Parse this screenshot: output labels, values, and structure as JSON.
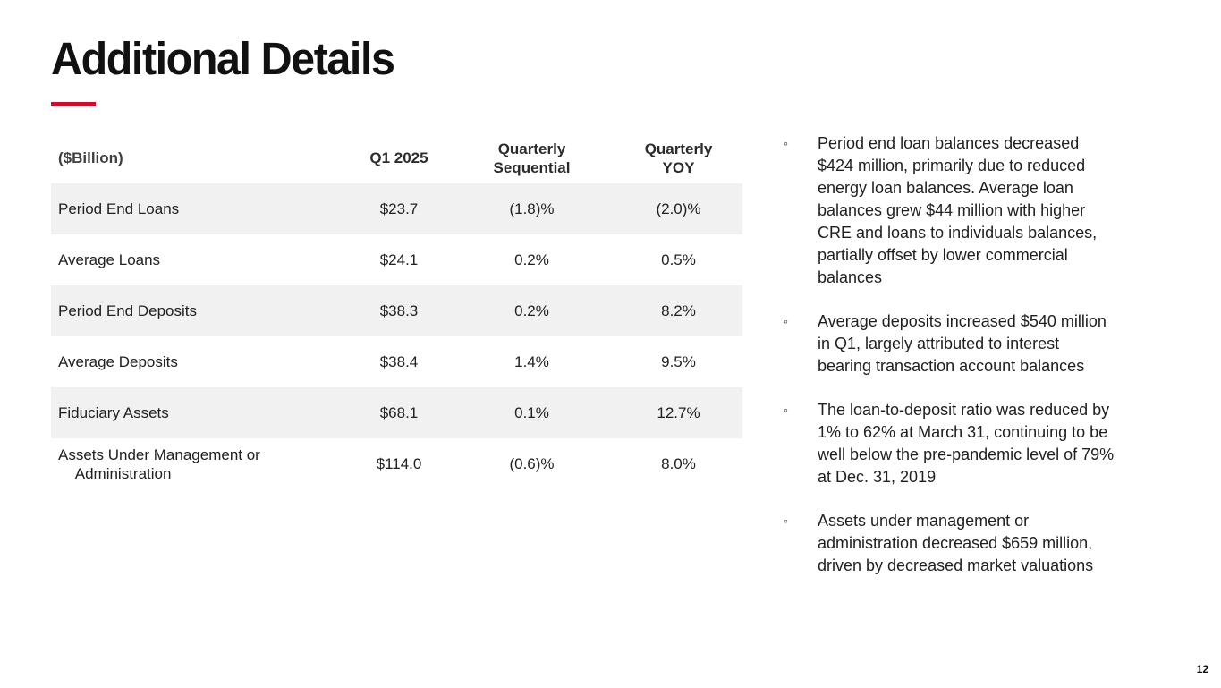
{
  "slide": {
    "title": "Additional Details",
    "page_number": "12",
    "bullet_marker": "◦",
    "accent_color": "#c8102e",
    "stripe_color": "#f1f1f1"
  },
  "table": {
    "unit_label": "($Billion)",
    "columns": {
      "q1": "Q1 2025",
      "seq": "Quarterly\nSequential",
      "yoy": "Quarterly\nYOY"
    },
    "rows": [
      {
        "label": "Period End Loans",
        "q1": "$23.7",
        "seq": "(1.8)%",
        "yoy": "(2.0)%"
      },
      {
        "label": "Average Loans",
        "q1": "$24.1",
        "seq": "0.2%",
        "yoy": "0.5%"
      },
      {
        "label": "Period End Deposits",
        "q1": "$38.3",
        "seq": "0.2%",
        "yoy": "8.2%"
      },
      {
        "label": "Average Deposits",
        "q1": "$38.4",
        "seq": "1.4%",
        "yoy": "9.5%"
      },
      {
        "label": "Fiduciary Assets",
        "q1": "$68.1",
        "seq": "0.1%",
        "yoy": "12.7%"
      },
      {
        "label": "Assets Under Management or\n Administration",
        "q1": "$114.0",
        "seq": "(0.6)%",
        "yoy": "8.0%"
      }
    ]
  },
  "bullets": [
    "Period end loan balances decreased\n$424 million, primarily due to reduced\nenergy loan balances. Average loan\nbalances grew $44 million with higher\nCRE and loans to individuals balances,\npartially offset by lower commercial\nbalances",
    "Average deposits increased $540 million\nin Q1, largely attributed to interest\nbearing transaction account balances",
    "The loan-to-deposit ratio was reduced by\n1% to 62% at March 31, continuing to be\nwell below the pre-pandemic level of 79%\nat Dec. 31, 2019",
    "Assets under management or\nadministration decreased $659 million,\ndriven by decreased market valuations"
  ]
}
